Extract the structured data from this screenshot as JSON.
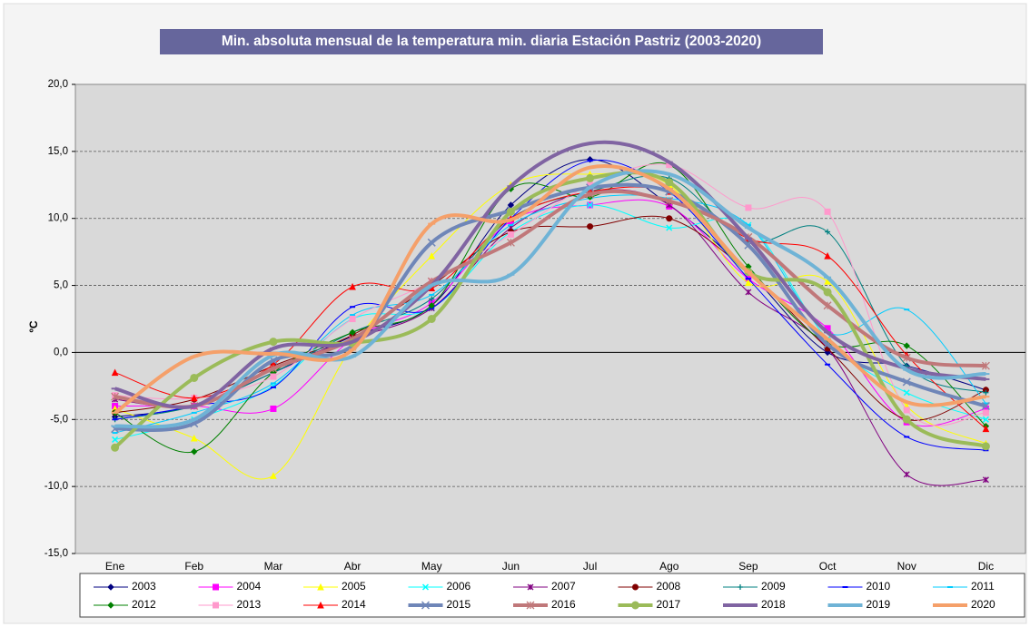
{
  "chart_data": {
    "type": "line",
    "title": "Min. absoluta mensual de la temperatura min. diaria Estación Pastriz (2003-2020)",
    "y_label": "ºC",
    "categories": [
      "Ene",
      "Feb",
      "Mar",
      "Abr",
      "May",
      "Jun",
      "Jul",
      "Ago",
      "Sep",
      "Oct",
      "Nov",
      "Dic"
    ],
    "ylim": [
      -15,
      20
    ],
    "yticks": [
      {
        "value": -15,
        "label": "-15,0"
      },
      {
        "value": -10,
        "label": "-10,0"
      },
      {
        "value": -5,
        "label": "-5,0"
      },
      {
        "value": 0,
        "label": "0,0"
      },
      {
        "value": 5,
        "label": "5,0"
      },
      {
        "value": 10,
        "label": "10,0"
      },
      {
        "value": 15,
        "label": "15,0"
      },
      {
        "value": 20,
        "label": "20,0"
      }
    ],
    "grid": true,
    "smooth": true,
    "legend": "bottom",
    "series": [
      {
        "name": "2003",
        "color": "#000080",
        "marker": "diamond",
        "width": 1,
        "values": [
          -4.8,
          -4,
          -1.5,
          1.2,
          3.5,
          11,
          14.4,
          11,
          6,
          0,
          -1,
          -2.8
        ]
      },
      {
        "name": "2004",
        "color": "#ff00ff",
        "marker": "square",
        "width": 1,
        "values": [
          -4,
          -4,
          -4.2,
          1,
          3.7,
          9.8,
          11,
          10.9,
          5.5,
          1.8,
          -5.2,
          -4.2
        ]
      },
      {
        "name": "2005",
        "color": "#ffff00",
        "marker": "triangle",
        "width": 1,
        "values": [
          -4.2,
          -6.4,
          -9.2,
          0.5,
          7.2,
          12.5,
          13.3,
          12.5,
          5.2,
          5.3,
          -4,
          -6.8
        ]
      },
      {
        "name": "2006",
        "color": "#00ffff",
        "marker": "x",
        "width": 1,
        "values": [
          -6.5,
          -5,
          -2.5,
          2.5,
          3.3,
          9,
          11,
          9.3,
          9.5,
          1,
          -3,
          -5
        ]
      },
      {
        "name": "2007",
        "color": "#800080",
        "marker": "star",
        "width": 1,
        "values": [
          -3.5,
          -4,
          -1.2,
          1,
          3.3,
          9.3,
          12,
          11,
          4.5,
          0.3,
          -9.1,
          -9.5
        ]
      },
      {
        "name": "2008",
        "color": "#800000",
        "marker": "circle",
        "width": 1,
        "values": [
          -4.5,
          -3.5,
          -1,
          1.3,
          5,
          9,
          9.4,
          10,
          6,
          0.3,
          -5,
          -2.8
        ]
      },
      {
        "name": "2009",
        "color": "#008080",
        "marker": "plus",
        "width": 1,
        "values": [
          -5,
          -4,
          -1.5,
          1.5,
          4,
          10,
          12,
          13,
          8.3,
          9,
          -1,
          -3
        ]
      },
      {
        "name": "2010",
        "color": "#0000ff",
        "marker": "dash",
        "width": 1,
        "values": [
          -5,
          -4,
          -2.6,
          3.4,
          3.3,
          10,
          14.3,
          12,
          5.5,
          -0.9,
          -6.3,
          -7.3
        ]
      },
      {
        "name": "2011",
        "color": "#00ccff",
        "marker": "dash",
        "width": 1,
        "values": [
          -6,
          -4.5,
          -2.3,
          2.8,
          4.3,
          9.5,
          11.5,
          11.5,
          9.5,
          1.5,
          3.2,
          -3.8
        ]
      },
      {
        "name": "2012",
        "color": "#008000",
        "marker": "diamond",
        "width": 1,
        "values": [
          -4.5,
          -7.4,
          -1.5,
          1.5,
          3.5,
          12.2,
          11.6,
          14,
          6.4,
          0.7,
          0.5,
          -5.5
        ]
      },
      {
        "name": "2013",
        "color": "#ff99cc",
        "marker": "square",
        "width": 1,
        "values": [
          -3.2,
          -3.4,
          -1.8,
          2.5,
          5.3,
          8.8,
          12.5,
          14,
          10.8,
          10.5,
          -4.3,
          -4.5
        ]
      },
      {
        "name": "2014",
        "color": "#ff0000",
        "marker": "triangle",
        "width": 1,
        "values": [
          -1.5,
          -3.4,
          -0.9,
          4.9,
          4.8,
          10,
          12,
          12,
          8.5,
          7.2,
          -0.2,
          -5.7
        ]
      },
      {
        "name": "2015",
        "color": "#6f86b8",
        "marker": "x",
        "width": 4,
        "values": [
          -5.7,
          -5.3,
          -0.6,
          0.5,
          8.2,
          10.6,
          12.3,
          12,
          8,
          0.6,
          -2.2,
          -4
        ]
      },
      {
        "name": "2016",
        "color": "#c0787a",
        "marker": "star",
        "width": 4,
        "values": [
          -3.3,
          -4,
          -1.2,
          1,
          5.3,
          8.2,
          11.8,
          11.3,
          8.6,
          3.5,
          -0.4,
          -1
        ]
      },
      {
        "name": "2017",
        "color": "#9bbb59",
        "marker": "circle",
        "width": 4,
        "values": [
          -7.1,
          -1.9,
          0.8,
          0.7,
          2.5,
          10.5,
          13,
          12.7,
          6,
          4.5,
          -5,
          -7
        ]
      },
      {
        "name": "2018",
        "color": "#8064a2",
        "marker": "dash",
        "width": 4,
        "values": [
          -2.7,
          -4,
          0.3,
          0.8,
          5,
          12.4,
          15.6,
          14.2,
          8.5,
          1.5,
          -1.2,
          -2
        ]
      },
      {
        "name": "2019",
        "color": "#6fb3d6",
        "marker": "dash",
        "width": 4,
        "values": [
          -5.5,
          -5,
          -0.2,
          -0.3,
          5,
          5.8,
          12.3,
          13.3,
          9.3,
          5.6,
          -1.3,
          -1.6
        ]
      },
      {
        "name": "2020",
        "color": "#f5a06a",
        "marker": "dash",
        "width": 4,
        "values": [
          -4.5,
          -0.3,
          -0.1,
          0.2,
          9.6,
          9.9,
          13.8,
          12.2,
          6,
          1,
          -3.7,
          -3.3
        ]
      }
    ]
  }
}
